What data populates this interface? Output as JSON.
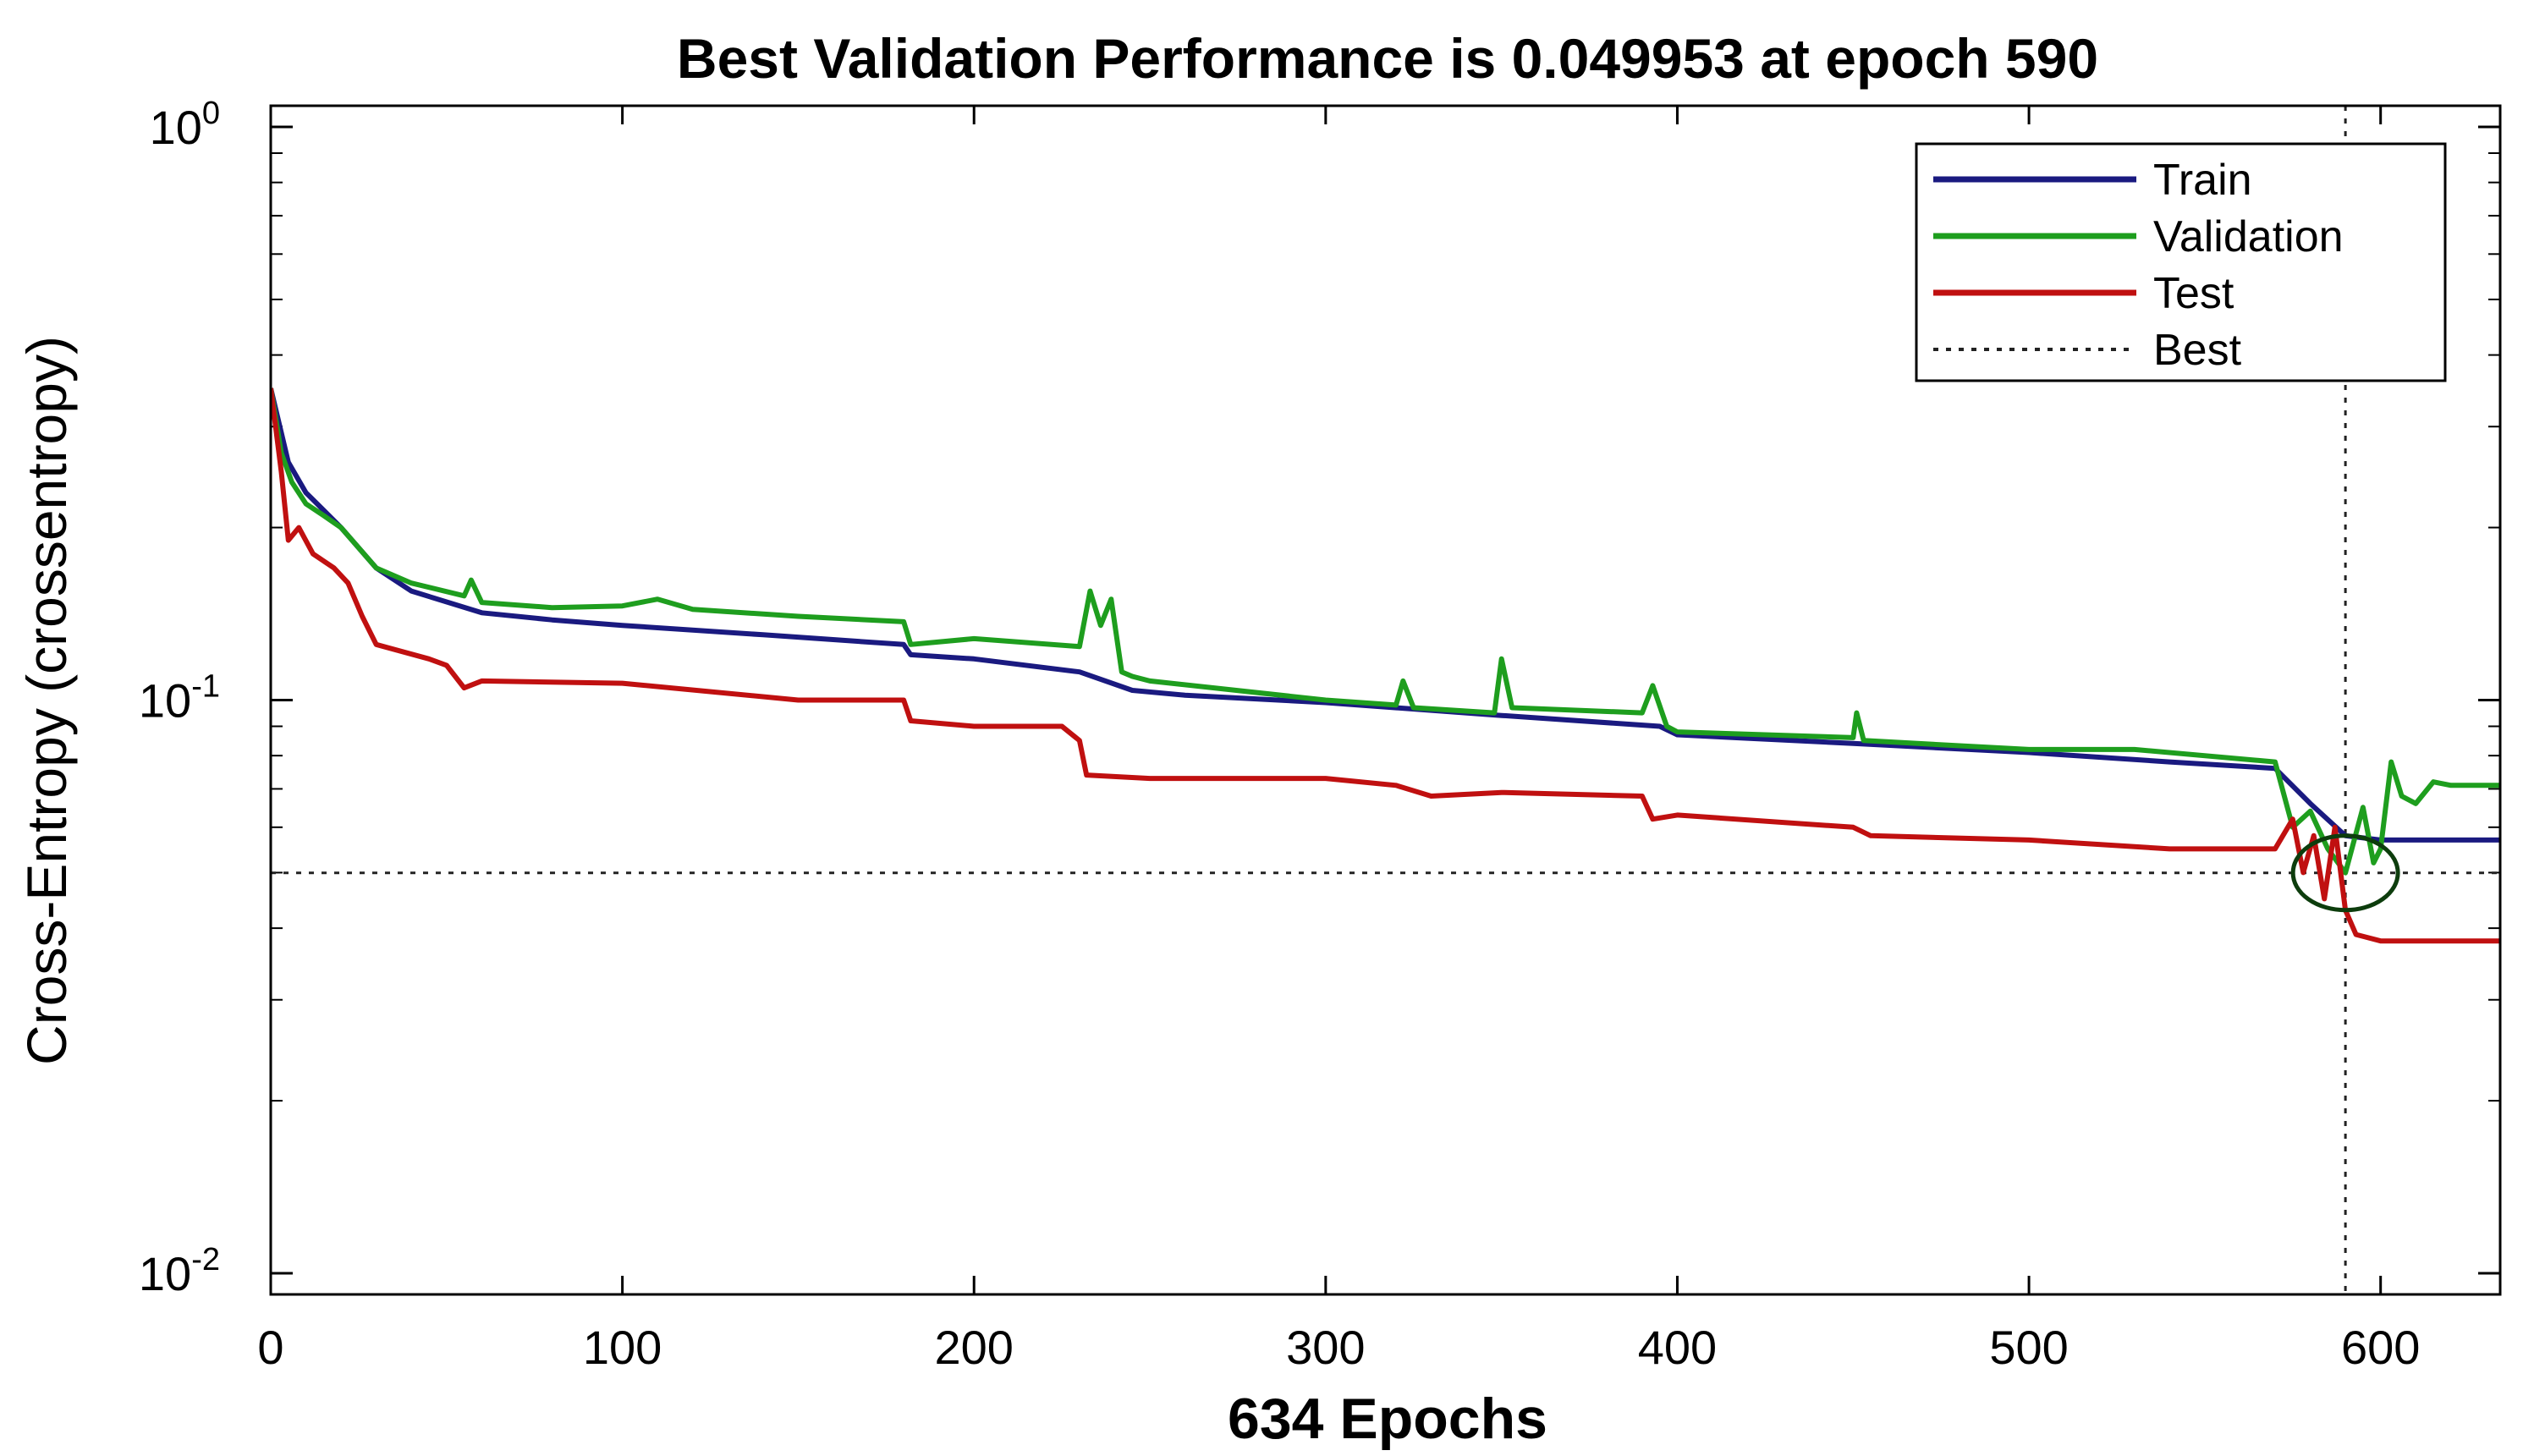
{
  "chart_data": {
    "type": "line",
    "title": "Best Validation Performance is 0.049953 at epoch 590",
    "xlabel": "634 Epochs",
    "ylabel": "Cross-Entropy  (crossentropy)",
    "yscale": "log",
    "xlim": [
      0,
      634
    ],
    "ylim": [
      0.01,
      1
    ],
    "xticks": [
      0,
      100,
      200,
      300,
      400,
      500,
      600
    ],
    "xtick_labels": [
      "0",
      "100",
      "200",
      "300",
      "400",
      "500",
      "600"
    ],
    "yticks": [
      {
        "value": 1,
        "base": "10",
        "exp": "0"
      },
      {
        "value": 0.1,
        "base": "10",
        "exp": "-1"
      },
      {
        "value": 0.01,
        "base": "10",
        "exp": "-2"
      }
    ],
    "legend_position": "top-right",
    "best": {
      "epoch": 590,
      "value": 0.049953
    },
    "colors": {
      "train": "#1a1a80",
      "validation": "#1e9e1e",
      "test": "#c01010",
      "best": "#222222",
      "circle": "#0d3d0d"
    },
    "series": [
      {
        "name": "Train",
        "key": "train",
        "x": [
          0,
          5,
          10,
          20,
          30,
          40,
          60,
          80,
          100,
          140,
          180,
          182,
          200,
          230,
          245,
          260,
          300,
          350,
          395,
          400,
          450,
          500,
          540,
          570,
          580,
          590,
          600,
          634
        ],
        "y": [
          0.35,
          0.26,
          0.23,
          0.2,
          0.17,
          0.155,
          0.142,
          0.138,
          0.135,
          0.13,
          0.125,
          0.12,
          0.118,
          0.112,
          0.104,
          0.102,
          0.099,
          0.094,
          0.09,
          0.087,
          0.084,
          0.081,
          0.078,
          0.076,
          0.066,
          0.058,
          0.057,
          0.057
        ]
      },
      {
        "name": "Validation",
        "key": "validation",
        "x": [
          0,
          3,
          6,
          10,
          15,
          20,
          30,
          40,
          55,
          57,
          60,
          80,
          100,
          110,
          120,
          150,
          180,
          182,
          200,
          230,
          233,
          236,
          239,
          242,
          245,
          250,
          300,
          320,
          322,
          325,
          348,
          350,
          353,
          390,
          393,
          397,
          400,
          450,
          451,
          453,
          500,
          530,
          570,
          575,
          580,
          585,
          590,
          595,
          598,
          600,
          603,
          606,
          610,
          615,
          620,
          634
        ],
        "y": [
          0.35,
          0.27,
          0.24,
          0.22,
          0.21,
          0.2,
          0.17,
          0.16,
          0.152,
          0.162,
          0.148,
          0.145,
          0.146,
          0.15,
          0.144,
          0.14,
          0.137,
          0.125,
          0.128,
          0.124,
          0.155,
          0.135,
          0.15,
          0.112,
          0.11,
          0.108,
          0.1,
          0.098,
          0.108,
          0.097,
          0.095,
          0.118,
          0.097,
          0.095,
          0.106,
          0.09,
          0.088,
          0.086,
          0.095,
          0.085,
          0.082,
          0.082,
          0.078,
          0.06,
          0.064,
          0.055,
          0.049953,
          0.065,
          0.052,
          0.055,
          0.078,
          0.068,
          0.066,
          0.072,
          0.071,
          0.071
        ]
      },
      {
        "name": "Test",
        "key": "test",
        "x": [
          0,
          3,
          5,
          8,
          12,
          18,
          22,
          26,
          30,
          45,
          50,
          55,
          60,
          100,
          150,
          180,
          182,
          200,
          225,
          230,
          232,
          250,
          300,
          320,
          330,
          350,
          390,
          393,
          400,
          450,
          455,
          500,
          540,
          570,
          575,
          578,
          581,
          584,
          587,
          590,
          593,
          600,
          634
        ],
        "y": [
          0.35,
          0.25,
          0.19,
          0.2,
          0.18,
          0.17,
          0.16,
          0.14,
          0.125,
          0.118,
          0.115,
          0.105,
          0.108,
          0.107,
          0.1,
          0.1,
          0.092,
          0.09,
          0.09,
          0.085,
          0.074,
          0.073,
          0.073,
          0.071,
          0.068,
          0.069,
          0.068,
          0.062,
          0.063,
          0.06,
          0.058,
          0.057,
          0.055,
          0.055,
          0.062,
          0.05,
          0.058,
          0.045,
          0.06,
          0.043,
          0.039,
          0.038,
          0.038
        ]
      }
    ]
  }
}
